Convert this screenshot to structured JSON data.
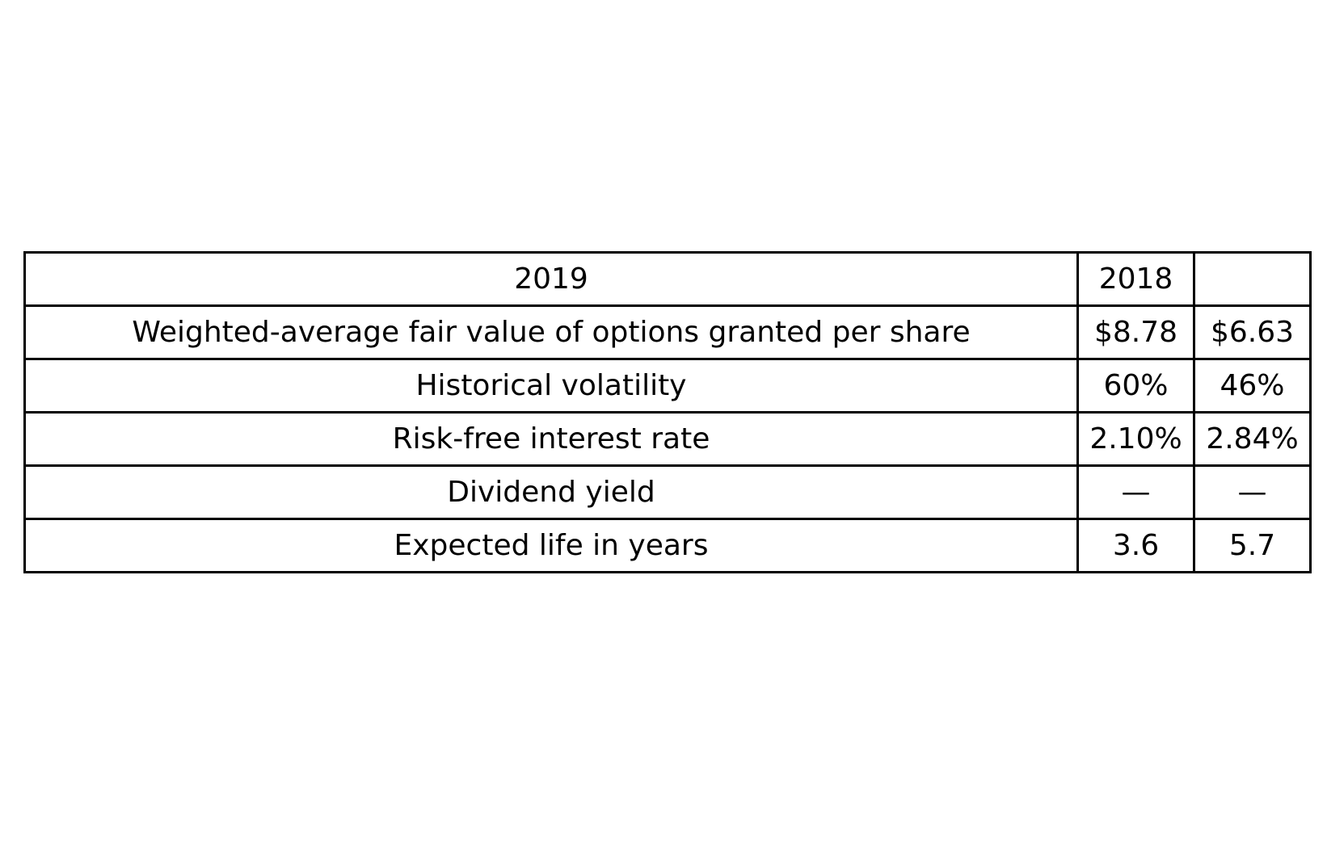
{
  "chart_data": {
    "type": "table",
    "header": [
      "2019",
      "2018",
      ""
    ],
    "rows": [
      [
        "Weighted-average fair value of options granted per share",
        "$8.78",
        "$6.63"
      ],
      [
        "Historical volatility",
        "60%",
        "46%"
      ],
      [
        "Risk-free interest rate",
        "2.10%",
        "2.84%"
      ],
      [
        "Dividend yield",
        "—",
        "—"
      ],
      [
        "Expected life in years",
        "3.6",
        "5.7"
      ]
    ]
  }
}
